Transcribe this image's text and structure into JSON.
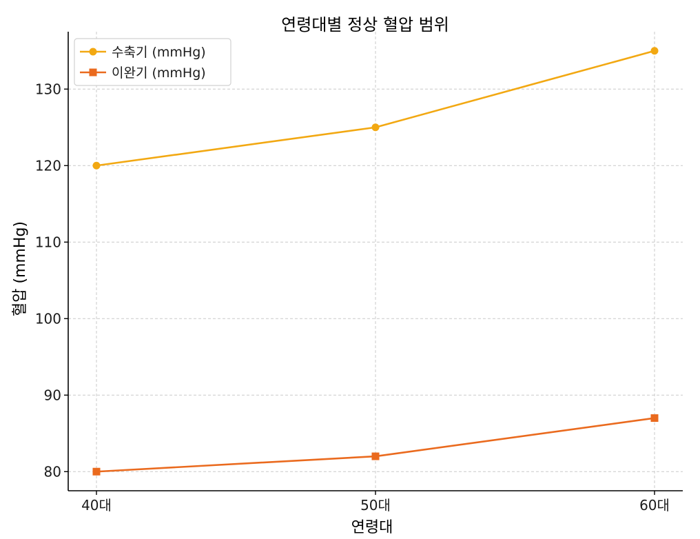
{
  "chart_data": {
    "type": "line",
    "title": "연령대별 정상 혈압 범위",
    "xlabel": "연령대",
    "ylabel": "혈압 (mmHg)",
    "categories": [
      "40대",
      "50대",
      "60대"
    ],
    "ylim": [
      77.5,
      137.5
    ],
    "yticks": [
      80,
      90,
      100,
      110,
      120,
      130
    ],
    "grid": true,
    "legend_position": "top-left",
    "series": [
      {
        "name": "수축기 (mmHg)",
        "values": [
          120,
          125,
          135
        ],
        "color": "#F2A812",
        "marker": "circle"
      },
      {
        "name": "이완기 (mmHg)",
        "values": [
          80,
          82,
          87
        ],
        "color": "#EA6A1E",
        "marker": "square"
      }
    ]
  }
}
